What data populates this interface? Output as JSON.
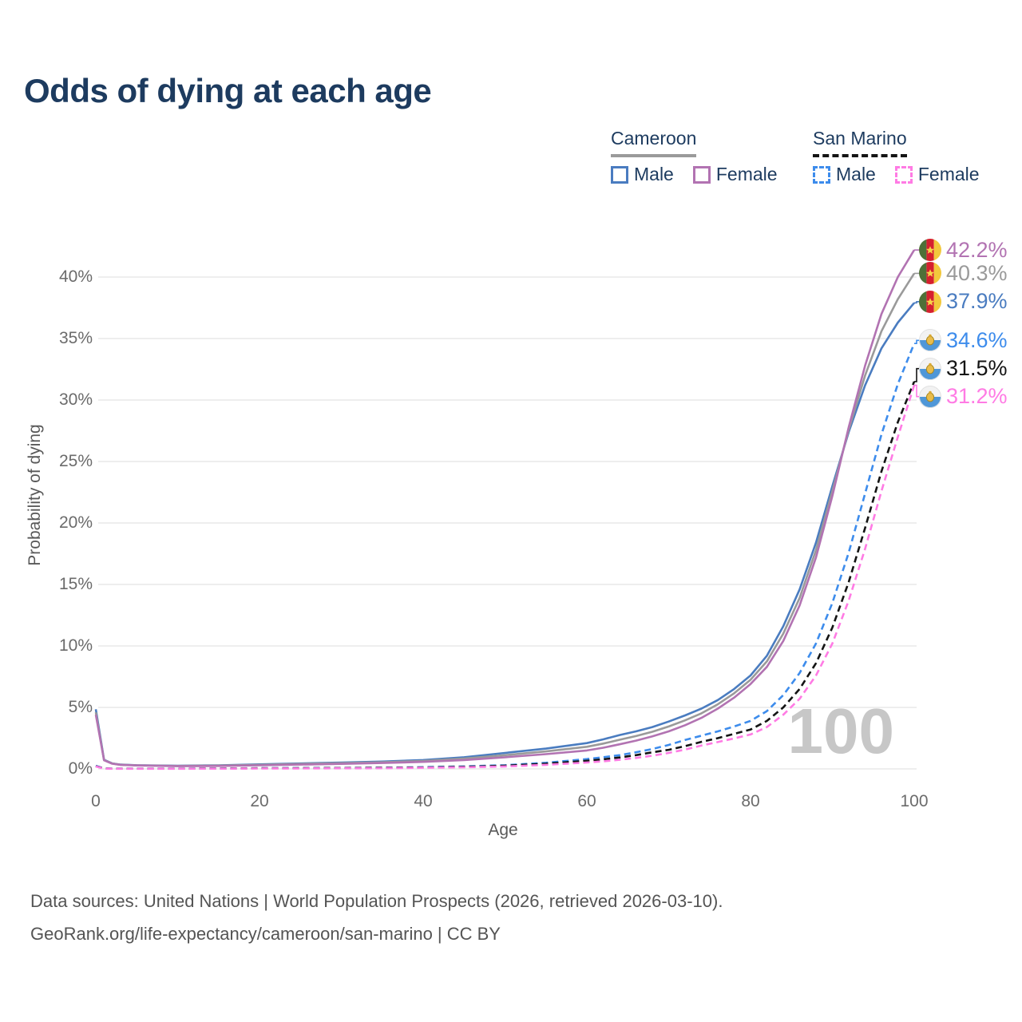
{
  "title": "Odds of dying at each age",
  "legend": {
    "groups": [
      {
        "label": "Cameroon",
        "underline_color": "#9a9a9a",
        "underline_style": "solid",
        "items": [
          {
            "label": "Male",
            "color": "#4a7cc0",
            "dashed": false
          },
          {
            "label": "Female",
            "color": "#b273b2",
            "dashed": false
          }
        ]
      },
      {
        "label": "San Marino",
        "underline_color": "#141414",
        "underline_style": "dashed",
        "items": [
          {
            "label": "Male",
            "color": "#3d8cec",
            "dashed": true
          },
          {
            "label": "Female",
            "color": "#ff7be4",
            "dashed": true
          }
        ]
      }
    ]
  },
  "chart_data": {
    "type": "line",
    "title": "Odds of dying at each age",
    "xlabel": "Age",
    "ylabel": "Probability of dying",
    "xlim": [
      0,
      100
    ],
    "ylim": [
      0,
      43.5
    ],
    "x_ticks": [
      0,
      20,
      40,
      60,
      80,
      100
    ],
    "y_ticks": [
      0,
      5,
      10,
      15,
      20,
      25,
      30,
      35,
      40
    ],
    "y_tick_suffix": "%",
    "grid": "horizontal",
    "legend_position": "top-right",
    "watermark": "100",
    "x": [
      0,
      1,
      2,
      3,
      5,
      10,
      15,
      20,
      25,
      30,
      35,
      40,
      45,
      50,
      55,
      60,
      62,
      64,
      66,
      68,
      70,
      72,
      74,
      76,
      78,
      80,
      82,
      84,
      86,
      88,
      90,
      92,
      94,
      96,
      98,
      100
    ],
    "series": [
      {
        "name": "Cameroon Male",
        "color": "#4a7cc0",
        "dashed": false,
        "flag": "cameroon",
        "end_label": "37.9%",
        "end_value": 37.9,
        "label_y_pct": 38.0,
        "values": [
          4.85,
          0.75,
          0.45,
          0.35,
          0.3,
          0.26,
          0.29,
          0.37,
          0.44,
          0.52,
          0.6,
          0.72,
          0.95,
          1.3,
          1.65,
          2.1,
          2.4,
          2.75,
          3.05,
          3.4,
          3.85,
          4.35,
          4.9,
          5.6,
          6.5,
          7.6,
          9.2,
          11.6,
          14.6,
          18.4,
          23.0,
          27.4,
          31.2,
          34.2,
          36.3,
          37.9
        ]
      },
      {
        "name": "Cameroon Total",
        "color": "#9a9a9a",
        "dashed": false,
        "flag": "cameroon",
        "end_label": "40.3%",
        "end_value": 40.3,
        "label_y_pct": 40.3,
        "values": [
          4.6,
          0.72,
          0.44,
          0.34,
          0.29,
          0.24,
          0.27,
          0.33,
          0.4,
          0.47,
          0.54,
          0.65,
          0.84,
          1.12,
          1.42,
          1.8,
          2.06,
          2.37,
          2.67,
          3.02,
          3.45,
          3.95,
          4.52,
          5.25,
          6.15,
          7.25,
          8.75,
          11.0,
          13.9,
          17.8,
          22.6,
          27.6,
          32.0,
          35.6,
          38.2,
          40.3
        ]
      },
      {
        "name": "Cameroon Female",
        "color": "#b273b2",
        "dashed": false,
        "flag": "cameroon",
        "end_label": "42.2%",
        "end_value": 42.2,
        "label_y_pct": 42.2,
        "values": [
          4.4,
          0.7,
          0.42,
          0.33,
          0.28,
          0.22,
          0.24,
          0.29,
          0.35,
          0.41,
          0.48,
          0.57,
          0.72,
          0.95,
          1.2,
          1.5,
          1.72,
          2.0,
          2.3,
          2.65,
          3.05,
          3.55,
          4.15,
          4.9,
          5.8,
          6.9,
          8.3,
          10.4,
          13.3,
          17.2,
          22.2,
          27.8,
          32.8,
          37.0,
          40.0,
          42.2
        ]
      },
      {
        "name": "San Marino Male",
        "color": "#3d8cec",
        "dashed": true,
        "flag": "san-marino",
        "end_label": "34.6%",
        "end_value": 34.6,
        "label_y_pct": 34.85,
        "values": [
          0.25,
          0.03,
          0.02,
          0.02,
          0.02,
          0.02,
          0.04,
          0.06,
          0.07,
          0.08,
          0.1,
          0.14,
          0.2,
          0.3,
          0.5,
          0.8,
          0.95,
          1.12,
          1.35,
          1.62,
          1.95,
          2.35,
          2.7,
          3.05,
          3.45,
          3.9,
          4.7,
          6.0,
          7.8,
          10.2,
          13.5,
          17.6,
          22.4,
          27.2,
          31.3,
          34.6
        ]
      },
      {
        "name": "San Marino Total",
        "color": "#141414",
        "dashed": true,
        "flag": "san-marino",
        "end_label": "31.5%",
        "end_value": 31.5,
        "label_y_pct": 32.55,
        "values": [
          0.22,
          0.03,
          0.02,
          0.02,
          0.02,
          0.02,
          0.03,
          0.05,
          0.06,
          0.07,
          0.09,
          0.12,
          0.17,
          0.26,
          0.42,
          0.66,
          0.78,
          0.93,
          1.12,
          1.35,
          1.55,
          1.85,
          2.2,
          2.5,
          2.85,
          3.2,
          3.9,
          5.0,
          6.5,
          8.6,
          11.5,
          15.2,
          19.6,
          24.2,
          28.2,
          31.5
        ]
      },
      {
        "name": "San Marino Female",
        "color": "#ff7be4",
        "dashed": true,
        "flag": "san-marino",
        "end_label": "31.2%",
        "end_value": 31.2,
        "label_y_pct": 30.28,
        "values": [
          0.2,
          0.02,
          0.015,
          0.015,
          0.015,
          0.015,
          0.02,
          0.03,
          0.04,
          0.05,
          0.06,
          0.09,
          0.13,
          0.2,
          0.33,
          0.52,
          0.62,
          0.74,
          0.89,
          1.07,
          1.3,
          1.57,
          1.9,
          2.18,
          2.48,
          2.8,
          3.4,
          4.4,
          5.7,
          7.6,
          10.2,
          13.7,
          17.9,
          22.6,
          27.0,
          31.2
        ]
      }
    ]
  },
  "footer": {
    "line1": "Data sources: United Nations | World Population Prospects (2026, retrieved 2026-03-10).",
    "line2": "GeoRank.org/life-expectancy/cameroon/san-marino | CC BY"
  },
  "colors": {
    "title": "#1d3b5f",
    "grid": "#e9e9e9",
    "tick_text": "#6b6b6b",
    "watermark": "#c7c7c7"
  }
}
